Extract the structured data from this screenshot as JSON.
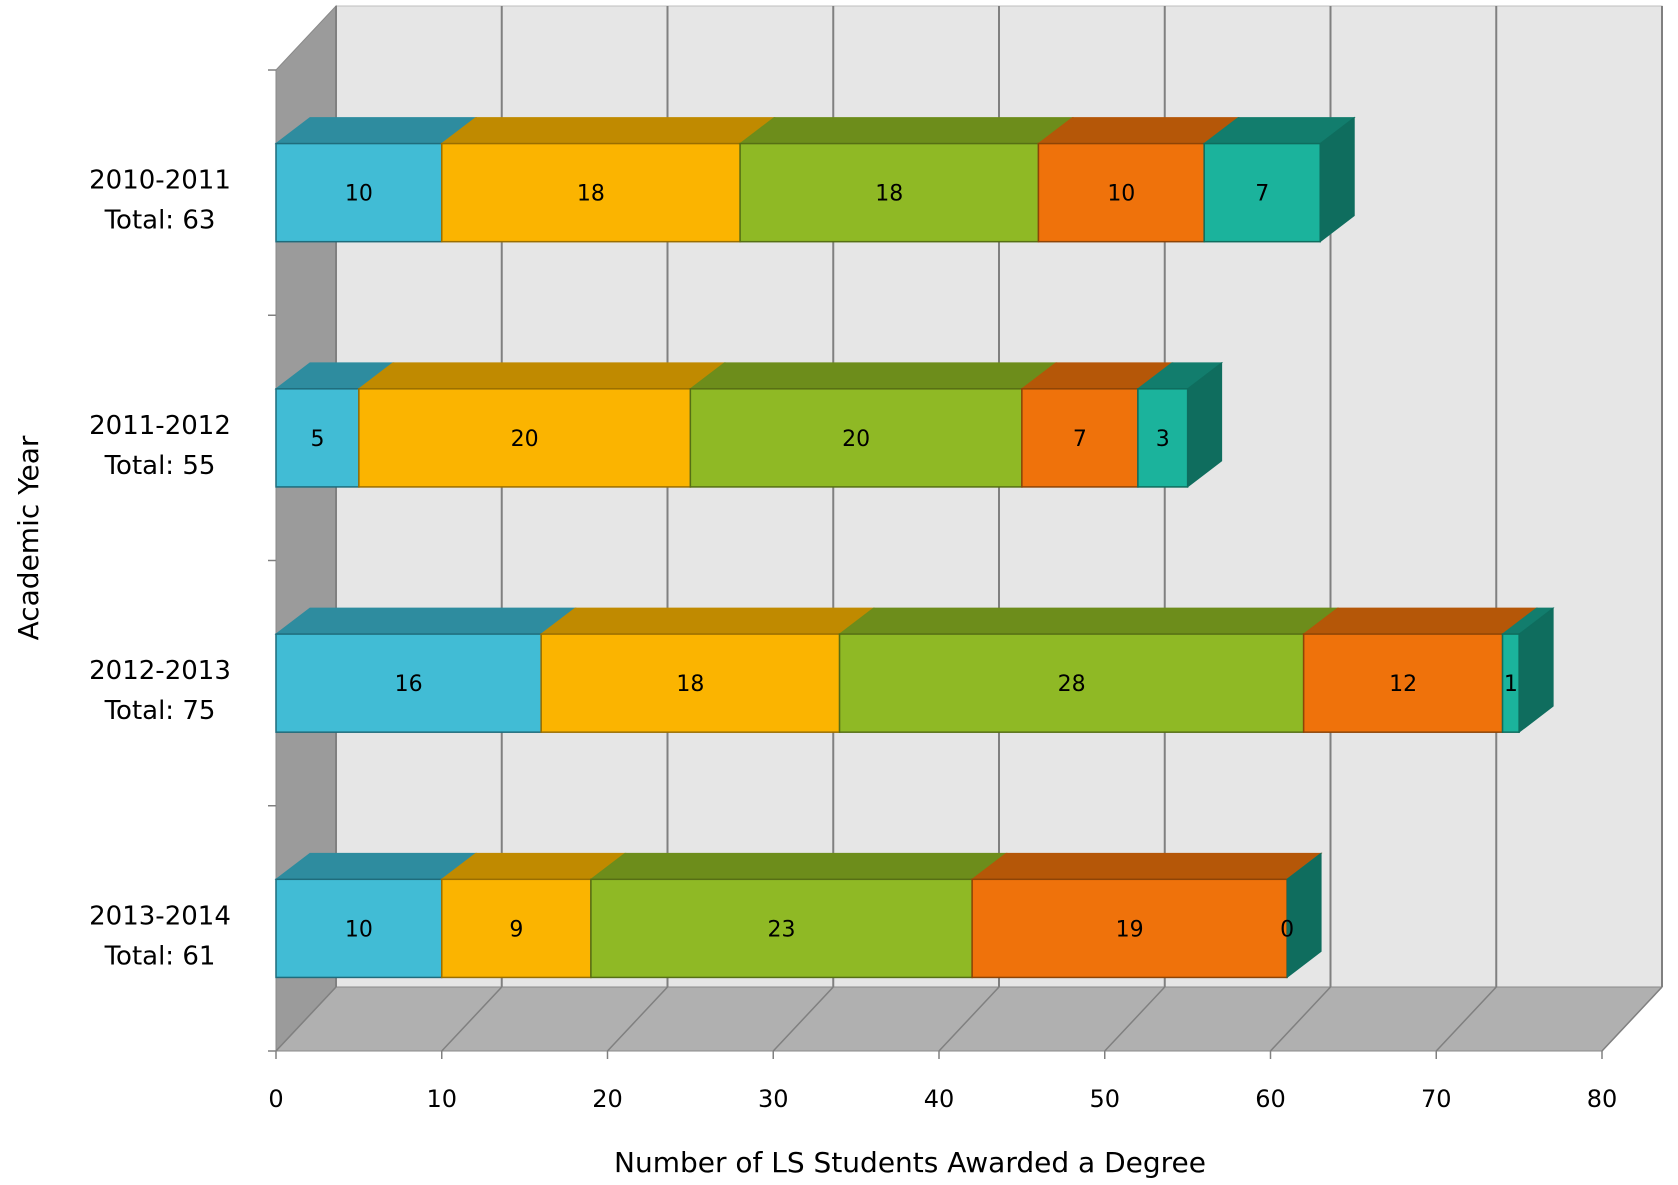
{
  "chart_data": {
    "type": "bar",
    "orientation": "horizontal",
    "stacked": true,
    "style": "3d",
    "xlabel": "Number of LS Students Awarded a Degree",
    "ylabel": "Academic Year",
    "xlim": [
      0,
      80
    ],
    "xticks": [
      "0",
      "10",
      "20",
      "30",
      "40",
      "50",
      "60",
      "70",
      "80"
    ],
    "grid": true,
    "legend": "none",
    "categories": [
      {
        "year": "2010-2011",
        "total": "Total: 63"
      },
      {
        "year": "2011-2012",
        "total": "Total: 55"
      },
      {
        "year": "2012-2013",
        "total": "Total: 75"
      },
      {
        "year": "2013-2014",
        "total": "Total: 61"
      }
    ],
    "series": [
      {
        "values": [
          10,
          5,
          16,
          10
        ],
        "color": "#41BCD5",
        "top": "#2E8C9F",
        "side": "#1F6C7C"
      },
      {
        "values": [
          18,
          20,
          18,
          9
        ],
        "color": "#FBB400",
        "top": "#C08A00",
        "side": "#9A6E00"
      },
      {
        "values": [
          18,
          20,
          28,
          23
        ],
        "color": "#8FB925",
        "top": "#6D8D1B",
        "side": "#566F14"
      },
      {
        "values": [
          10,
          7,
          12,
          19
        ],
        "color": "#EF720B",
        "top": "#B55708",
        "side": "#8E4406"
      },
      {
        "values": [
          7,
          3,
          1,
          0
        ],
        "color": "#1BB39C",
        "top": "#127D6D",
        "side": "#0F6D5E"
      }
    ]
  }
}
